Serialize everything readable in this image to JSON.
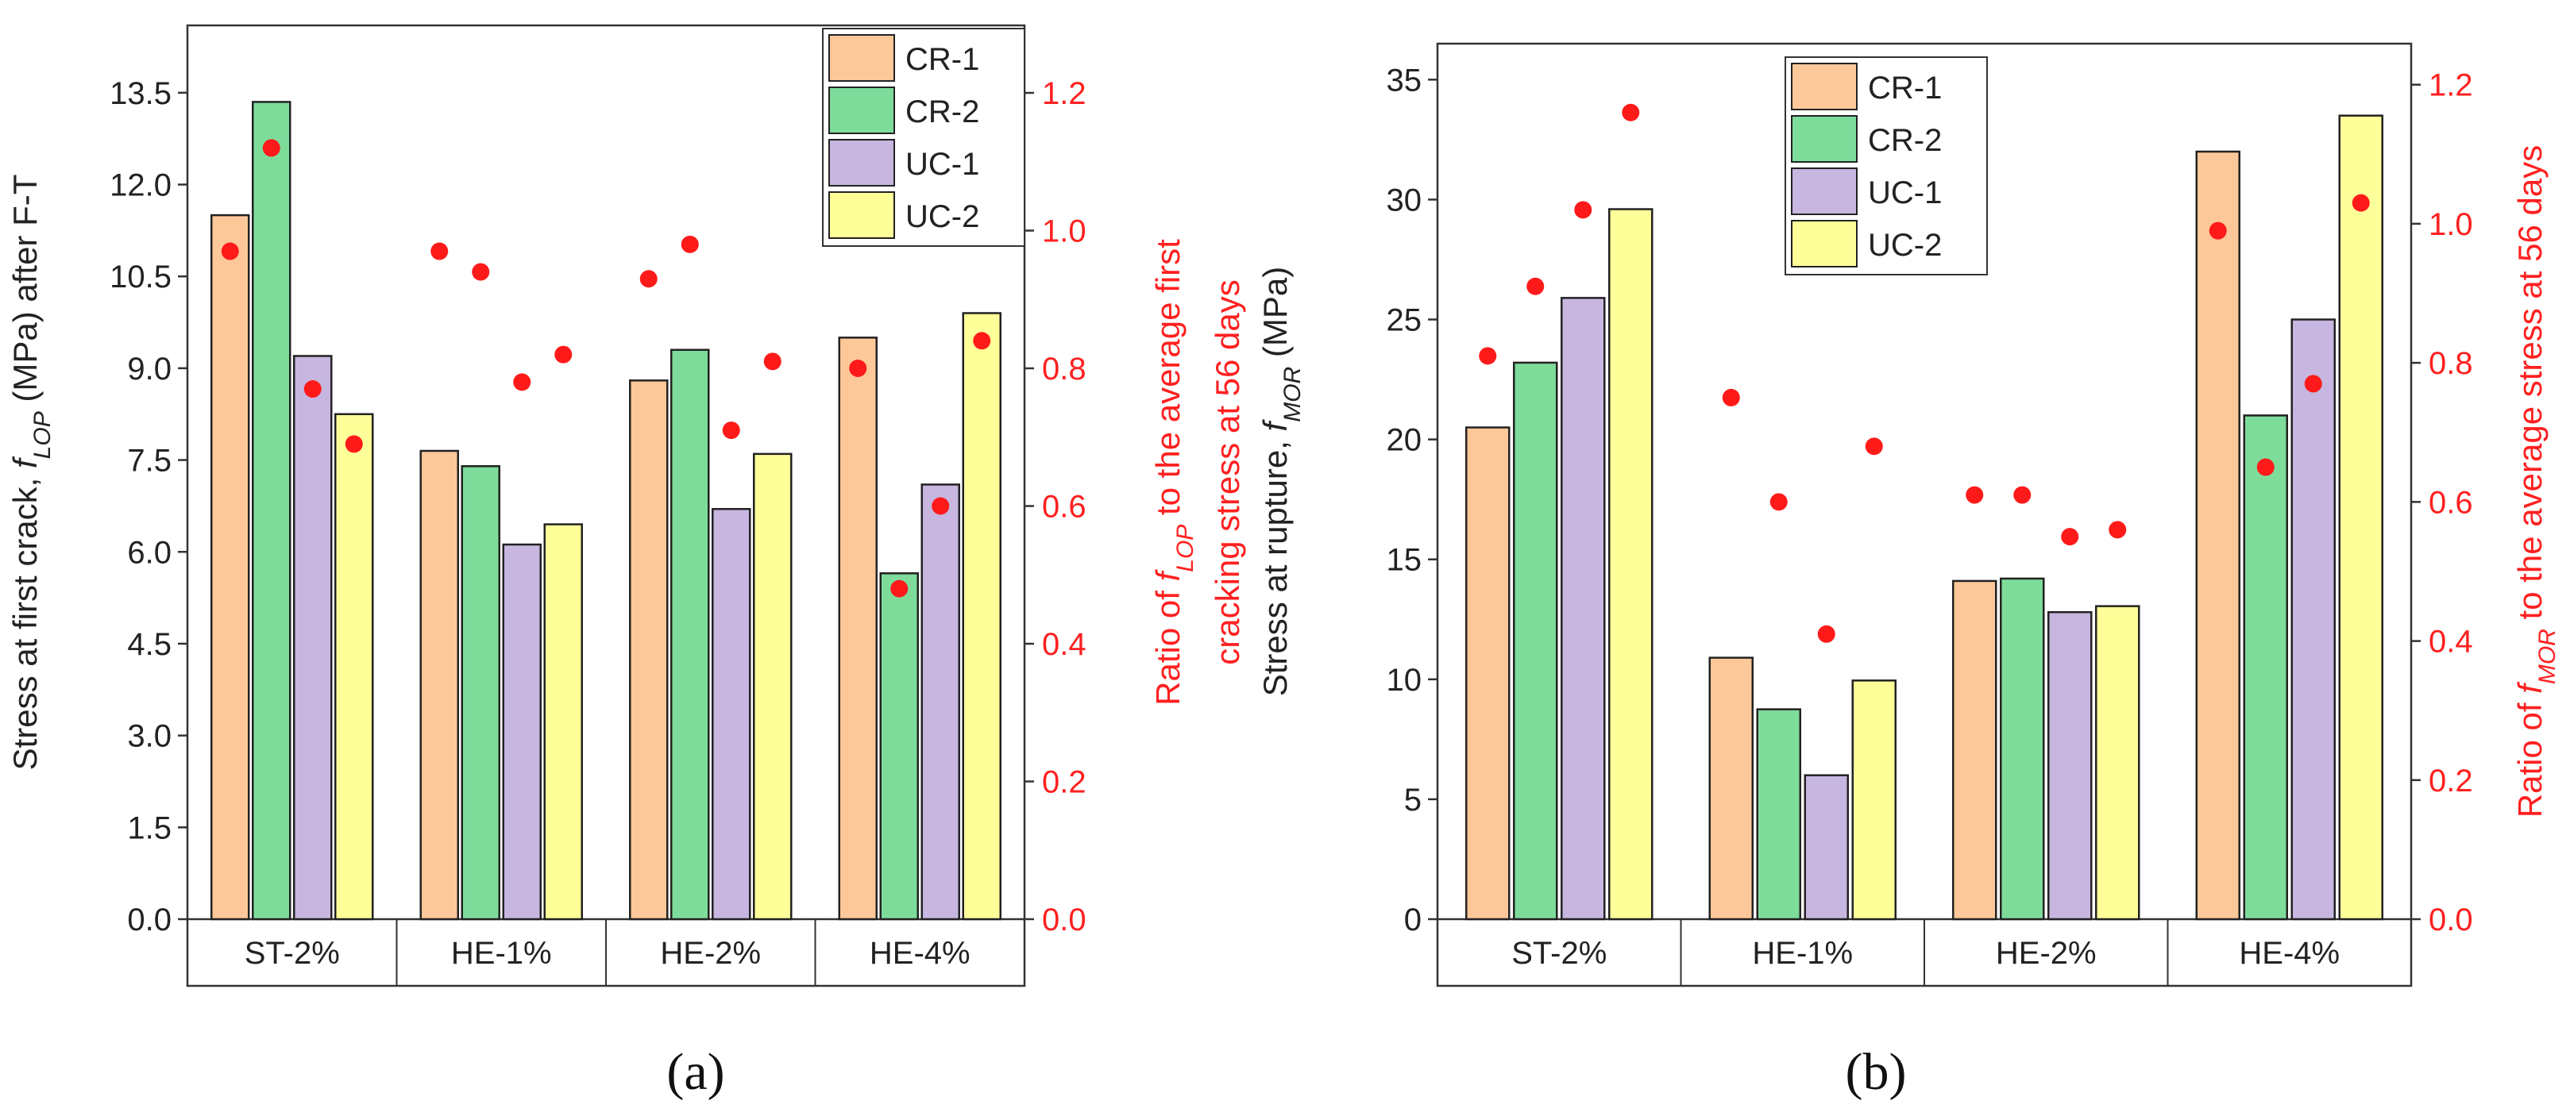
{
  "chart_data": [
    {
      "type": "bar",
      "panel_label": "(a)",
      "categories": [
        "ST-2%",
        "HE-1%",
        "HE-2%",
        "HE-4%"
      ],
      "series": [
        {
          "name": "CR-1",
          "color": "#FDC899",
          "values": [
            11.5,
            7.65,
            8.8,
            9.5
          ]
        },
        {
          "name": "CR-2",
          "color": "#7EDC9B",
          "values": [
            13.35,
            7.4,
            9.3,
            5.65
          ]
        },
        {
          "name": "UC-1",
          "color": "#C6B6E0",
          "values": [
            9.2,
            6.12,
            6.7,
            7.1
          ]
        },
        {
          "name": "UC-2",
          "color": "#FFFF99",
          "values": [
            8.25,
            6.45,
            7.6,
            9.9
          ]
        }
      ],
      "ratio_series": {
        "color": "#FF1A1A",
        "values": [
          [
            0.97,
            1.12,
            0.77,
            0.69
          ],
          [
            0.97,
            0.94,
            0.78,
            0.82
          ],
          [
            0.93,
            0.98,
            0.71,
            0.81
          ],
          [
            0.8,
            0.48,
            0.6,
            0.84
          ]
        ]
      },
      "ylabel_parts": [
        "Stress at first crack, ",
        "f",
        "LOP",
        " (MPa) after F-T"
      ],
      "y2label_lines": [
        [
          "Ratio of ",
          "f",
          "LOP",
          " to the average first"
        ],
        [
          "cracking stress at 56 days"
        ]
      ],
      "ylim": [
        0,
        14.6
      ],
      "yticks": [
        0.0,
        1.5,
        3.0,
        4.5,
        6.0,
        7.5,
        9.0,
        10.5,
        12.0,
        13.5
      ],
      "ytick_labels": [
        "0.0",
        "1.5",
        "3.0",
        "4.5",
        "6.0",
        "7.5",
        "9.0",
        "10.5",
        "12.0",
        "13.5"
      ],
      "y2lim": [
        0,
        1.298
      ],
      "y2ticks": [
        0.0,
        0.2,
        0.4,
        0.6,
        0.8,
        1.0,
        1.2
      ],
      "y2tick_labels": [
        "0.0",
        "0.2",
        "0.4",
        "0.6",
        "0.8",
        "1.0",
        "1.2"
      ],
      "legend_position": "top-right"
    },
    {
      "type": "bar",
      "panel_label": "(b)",
      "categories": [
        "ST-2%",
        "HE-1%",
        "HE-2%",
        "HE-4%"
      ],
      "series": [
        {
          "name": "CR-1",
          "color": "#FDC899",
          "values": [
            20.5,
            10.9,
            14.1,
            32.0
          ]
        },
        {
          "name": "CR-2",
          "color": "#7EDC9B",
          "values": [
            23.2,
            8.75,
            14.2,
            21.0
          ]
        },
        {
          "name": "UC-1",
          "color": "#C6B6E0",
          "values": [
            25.9,
            6.0,
            12.8,
            25.0
          ]
        },
        {
          "name": "UC-2",
          "color": "#FFFF99",
          "values": [
            29.6,
            9.95,
            13.05,
            33.5
          ]
        }
      ],
      "ratio_series": {
        "color": "#FF1A1A",
        "values": [
          [
            0.81,
            0.91,
            1.02,
            1.16
          ],
          [
            0.75,
            0.6,
            0.41,
            0.68
          ],
          [
            0.61,
            0.61,
            0.55,
            0.56
          ],
          [
            0.99,
            0.65,
            0.77,
            1.03
          ]
        ]
      },
      "ylabel_parts": [
        "Stress at rupture, ",
        "f",
        "MOR",
        " (MPa)"
      ],
      "y2label_lines": [
        [
          "Ratio of ",
          "f",
          "MOR",
          " to the average stress at 56 days"
        ]
      ],
      "ylim": [
        0,
        36.5
      ],
      "yticks": [
        0,
        5,
        10,
        15,
        20,
        25,
        30,
        35
      ],
      "ytick_labels": [
        "0",
        "5",
        "10",
        "15",
        "20",
        "25",
        "30",
        "35"
      ],
      "y2lim": [
        0,
        1.259
      ],
      "y2ticks": [
        0.0,
        0.2,
        0.4,
        0.6,
        0.8,
        1.0,
        1.2
      ],
      "y2tick_labels": [
        "0.0",
        "0.2",
        "0.4",
        "0.6",
        "0.8",
        "1.0",
        "1.2"
      ],
      "legend_position": "top-center"
    }
  ]
}
